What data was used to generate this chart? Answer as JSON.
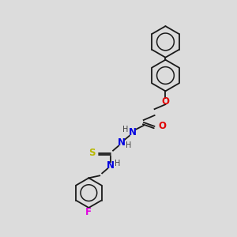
{
  "background_color": "#dcdcdc",
  "bond_color": "#1a1a1a",
  "atom_colors": {
    "O": "#e00000",
    "N": "#0000e0",
    "S": "#b8b800",
    "F": "#e000e0",
    "C": "#1a1a1a",
    "H": "#444444"
  },
  "figsize": [
    3.0,
    3.0
  ],
  "dpi": 100
}
